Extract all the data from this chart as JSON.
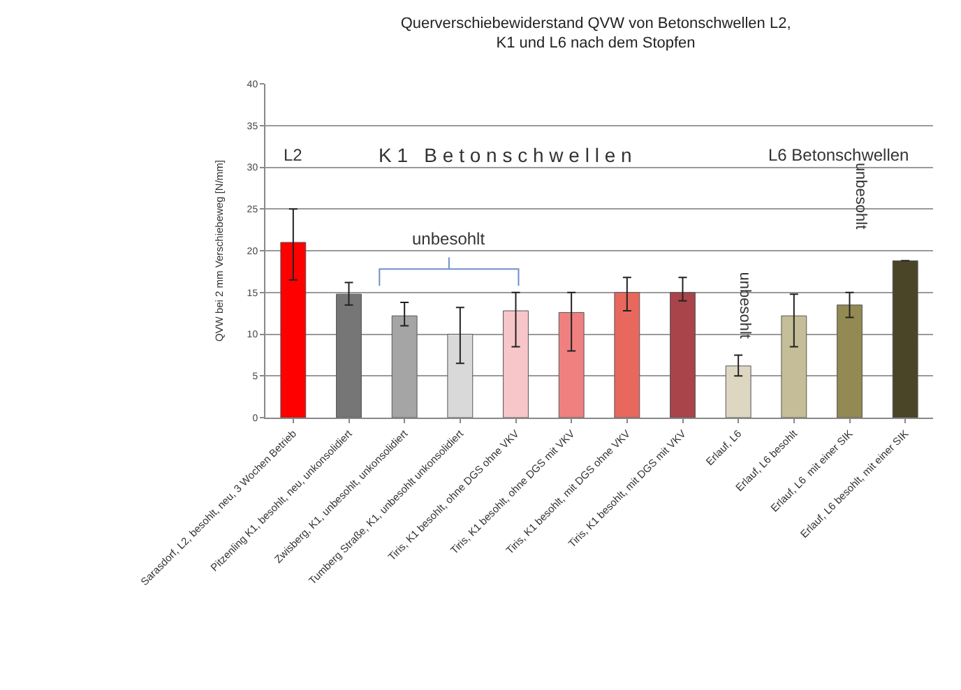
{
  "chart_data": {
    "type": "bar",
    "title": "Querverschiebewiderstand QVW von Betonschwellen L2,\nK1 und L6 nach dem Stopfen",
    "ylabel": "QVW bei 2 mm Verschiebeweg [N/mm]",
    "categories": [
      "Sarasdorf, L2, besohlt, neu, 3 Wochen Betrieb",
      "Pitzenling K1, besohlt, neu, unkonsolidiert",
      "Zwisberg, K1, unbesohlt, unkonsolidiert",
      "Tumberg Straße, K1, unbesohlt unkonsolidiert",
      "Tiris, K1 besohlt, ohne DGS ohne VKV",
      "Tiris, K1 besohlt, ohne DGS mit VKV",
      "Tiris, K1 besohlt, mit DGS ohne VKV",
      "Tiris, K1 besohlt, mit DGS mit VKV",
      "Erlauf, L6",
      "Erlauf, L6 besohlt",
      "Erlauf, L6  mit einer SIK",
      "Erlauf, L6 besohlt, mit einer SIK"
    ],
    "values": [
      21,
      14.8,
      12.2,
      10,
      12.8,
      12.6,
      15,
      15,
      6.2,
      12.2,
      13.5,
      18.8
    ],
    "errors": [
      [
        16.5,
        25
      ],
      [
        13.5,
        16.2
      ],
      [
        11,
        13.8
      ],
      [
        6.5,
        13.2
      ],
      [
        8.5,
        15
      ],
      [
        8,
        15
      ],
      [
        12.8,
        16.8
      ],
      [
        14,
        16.8
      ],
      [
        5,
        7.5
      ],
      [
        8.5,
        14.8
      ],
      [
        12,
        15
      ],
      null
    ],
    "colors": [
      "#ff0000",
      "#767676",
      "#a5a5a5",
      "#d9d9d9",
      "#f7c6c8",
      "#f08080",
      "#e8685e",
      "#a8444a",
      "#ddd7c2",
      "#c4bd97",
      "#938953",
      "#4a4527"
    ],
    "ylim": [
      0,
      40
    ],
    "yticks": [
      0,
      5,
      10,
      15,
      20,
      25,
      30,
      35,
      40
    ],
    "grid": "y",
    "annotations": [
      "L2",
      "K 1   B e t o n s c h w e l l e n",
      "L6 Betonschwellen",
      "unbesohlt",
      "unbesohlt",
      "unbesohlt"
    ]
  }
}
